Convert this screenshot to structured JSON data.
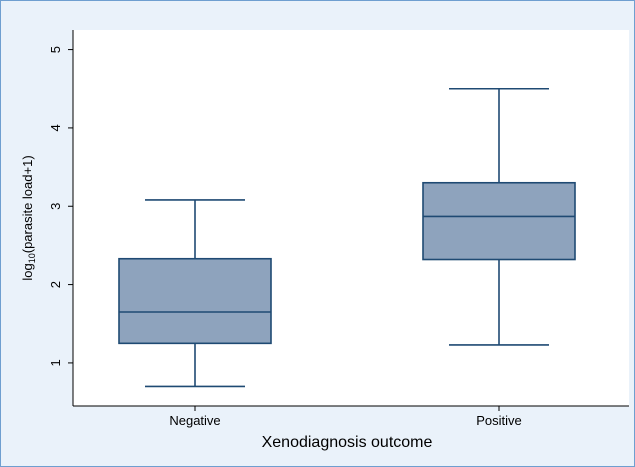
{
  "chart_data": {
    "type": "box",
    "title": "",
    "xlabel": "Xenodiagnosis outcome",
    "ylabel": {
      "prefix": "log",
      "subscript": "10",
      "suffix": "(parasite load+1)"
    },
    "ylim": [
      0.45,
      5.25
    ],
    "yticks": [
      1,
      2,
      3,
      4,
      5
    ],
    "grid": false,
    "colors": {
      "box_fill": "#8ea3bd",
      "line": "#1f4a73",
      "axis": "#000000",
      "frame_border": "#6f9fd0",
      "frame_bg": "#eaf2fa",
      "plot_bg": "#ffffff"
    },
    "categories": [
      "Negative",
      "Positive"
    ],
    "boxes": [
      {
        "category": "Negative",
        "whisker_low": 0.7,
        "q1": 1.25,
        "median": 1.65,
        "q3": 2.33,
        "whisker_high": 3.08
      },
      {
        "category": "Positive",
        "whisker_low": 1.23,
        "q1": 2.32,
        "median": 2.87,
        "q3": 3.3,
        "whisker_high": 4.5
      }
    ]
  }
}
